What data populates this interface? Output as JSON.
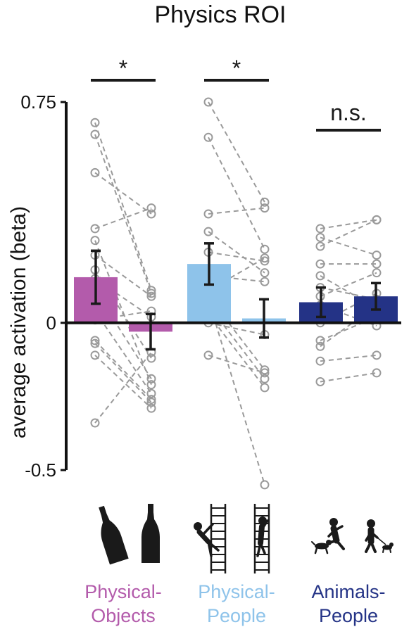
{
  "chart_data": {
    "type": "bar",
    "title": "Physics ROI",
    "ylabel": "average activation (beta)",
    "xlabel": "",
    "ylim": [
      -0.5,
      0.75
    ],
    "yticks": [
      {
        "value": 0.75,
        "label": "0.75"
      },
      {
        "value": 0,
        "label": "0"
      },
      {
        "value": -0.5,
        "label": "-0.5"
      }
    ],
    "groups": [
      {
        "label_line1": "Physical-",
        "label_line2": "Objects",
        "color": "#b35bab",
        "significance": "*",
        "icons": [
          "beer-bottle-tilted-icon",
          "beer-bottle-upright-icon"
        ],
        "bars": [
          {
            "mean": 0.155,
            "error": 0.09
          },
          {
            "mean": -0.03,
            "error": 0.06
          }
        ],
        "subjects": [
          [
            0.68,
            0.11
          ],
          [
            0.64,
            0.1
          ],
          [
            0.51,
            0.37
          ],
          [
            0.32,
            0.39
          ],
          [
            0.28,
            -0.21
          ],
          [
            0.23,
            0.09
          ],
          [
            0.18,
            -0.12
          ],
          [
            0.15,
            0.02
          ],
          [
            0.11,
            -0.19
          ],
          [
            0.04,
            -0.24
          ],
          [
            0.01,
            0.04
          ],
          [
            -0.06,
            -0.26
          ],
          [
            -0.07,
            -0.27
          ],
          [
            -0.11,
            -0.29
          ],
          [
            -0.34,
            -0.1
          ]
        ]
      },
      {
        "label_line1": "Physical-",
        "label_line2": "People",
        "color": "#8ec3ea",
        "significance": "*",
        "icons": [
          "person-falling-from-ladder-icon",
          "person-on-ladder-icon"
        ],
        "bars": [
          {
            "mean": 0.2,
            "error": 0.07
          },
          {
            "mean": 0.015,
            "error": 0.065
          }
        ],
        "subjects": [
          [
            0.75,
            0.41
          ],
          [
            0.63,
            0.25
          ],
          [
            0.37,
            0.39
          ],
          [
            0.31,
            0.17
          ],
          [
            0.24,
            0.21
          ],
          [
            0.16,
            0.14
          ],
          [
            0.11,
            0.22
          ],
          [
            0.09,
            -0.16
          ],
          [
            0.08,
            -0.55
          ],
          [
            0.06,
            -0.19
          ],
          [
            0.03,
            -0.22
          ],
          [
            0.0,
            -0.04
          ],
          [
            -0.11,
            -0.17
          ]
        ]
      },
      {
        "label_line1": "Animals-",
        "label_line2": "People",
        "color": "#243386",
        "significance": "n.s.",
        "icons": [
          "person-kicking-dog-icon",
          "person-walking-dog-icon"
        ],
        "bars": [
          {
            "mean": 0.07,
            "error": 0.05
          },
          {
            "mean": 0.09,
            "error": 0.045
          }
        ],
        "subjects": [
          [
            0.32,
            0.35
          ],
          [
            0.29,
            0.23
          ],
          [
            0.26,
            0.35
          ],
          [
            0.2,
            0.2
          ],
          [
            0.16,
            0.05
          ],
          [
            0.12,
            0.08
          ],
          [
            0.09,
            0.17
          ],
          [
            0.06,
            -0.01
          ],
          [
            0.0,
            0.1
          ],
          [
            -0.06,
            0.02
          ],
          [
            -0.08,
            0.06
          ],
          [
            -0.13,
            -0.11
          ],
          [
            -0.2,
            -0.17
          ]
        ]
      }
    ]
  }
}
